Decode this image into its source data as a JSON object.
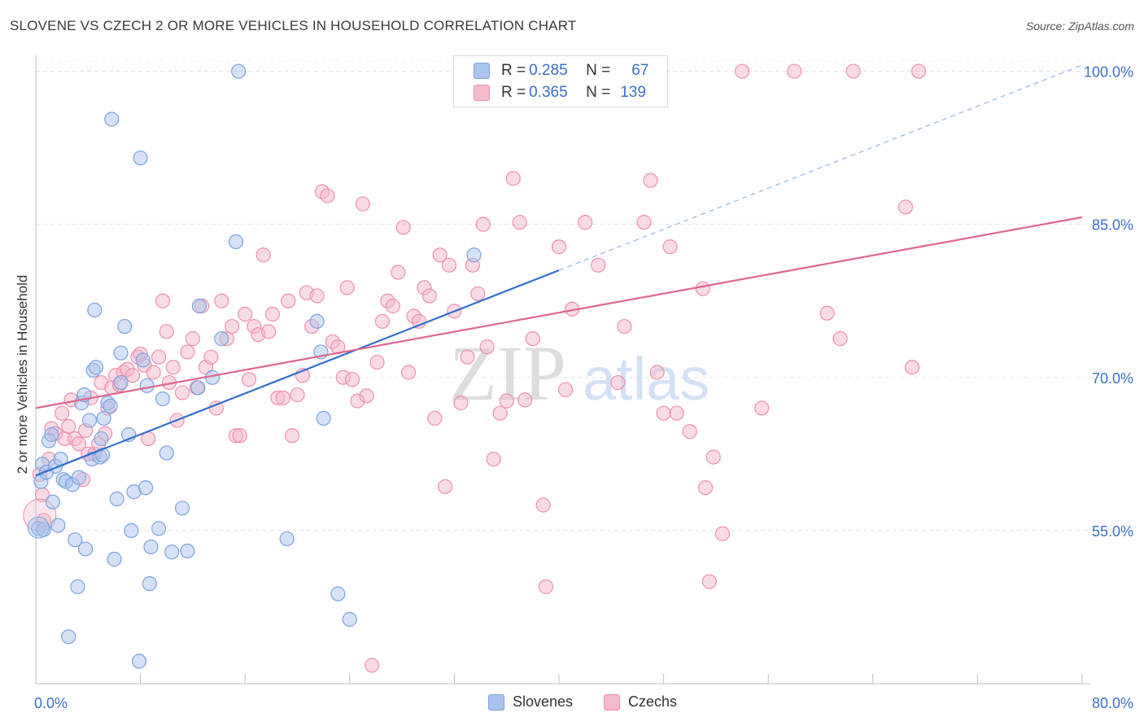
{
  "title": "SLOVENE VS CZECH 2 OR MORE VEHICLES IN HOUSEHOLD CORRELATION CHART",
  "source": "Source: ZipAtlas.com",
  "watermark": {
    "zip": "ZIP",
    "atlas": "atlas"
  },
  "legend_top": [
    {
      "r_label": "R = ",
      "r_value": "0.285",
      "n_label": "N = ",
      "n_value": "67",
      "fill": "#a9c4ee",
      "stroke": "#7da3dd"
    },
    {
      "r_label": "R = ",
      "r_value": "0.365",
      "n_label": "N = ",
      "n_value": "139",
      "fill": "#f6b8cb",
      "stroke": "#ee8fae"
    }
  ],
  "chart_data": {
    "type": "scatter",
    "title": "SLOVENE VS CZECH 2 OR MORE VEHICLES IN HOUSEHOLD CORRELATION CHART",
    "xlabel": "",
    "ylabel": "2 or more Vehicles in Household",
    "xlim": [
      0,
      80
    ],
    "ylim": [
      40,
      101
    ],
    "x_tick_labels": [
      "0.0%",
      "80.0%"
    ],
    "y_ticks": [
      55,
      70,
      85,
      100
    ],
    "y_tick_labels": [
      "55.0%",
      "70.0%",
      "85.0%",
      "100.0%"
    ],
    "grid": true,
    "legend_position": "bottom-center",
    "series": [
      {
        "name": "Slovenes",
        "color": "#7da3dd",
        "fill": "#a9c4ee",
        "trend": {
          "x0": 0,
          "y0": 60.4,
          "x1": 40,
          "y1": 80.5,
          "dash_to_x": 80,
          "dash_to_y": 100.6
        },
        "points": [
          [
            0.2,
            55.2
          ],
          [
            0.4,
            59.8
          ],
          [
            0.5,
            61.5
          ],
          [
            0.6,
            55.1
          ],
          [
            0.8,
            60.7
          ],
          [
            1.0,
            63.8
          ],
          [
            1.2,
            64.4
          ],
          [
            1.3,
            57.8
          ],
          [
            1.5,
            61.3
          ],
          [
            1.7,
            55.5
          ],
          [
            1.9,
            62.0
          ],
          [
            2.1,
            60.0
          ],
          [
            2.3,
            59.8
          ],
          [
            2.5,
            44.6
          ],
          [
            2.8,
            59.5
          ],
          [
            3.0,
            54.1
          ],
          [
            3.2,
            49.5
          ],
          [
            3.3,
            60.2
          ],
          [
            3.5,
            67.5
          ],
          [
            3.7,
            68.3
          ],
          [
            3.8,
            53.2
          ],
          [
            4.1,
            65.8
          ],
          [
            4.3,
            62.0
          ],
          [
            4.4,
            70.7
          ],
          [
            4.5,
            76.6
          ],
          [
            4.6,
            71.0
          ],
          [
            4.9,
            62.2
          ],
          [
            5.1,
            62.4
          ],
          [
            5.2,
            66.0
          ],
          [
            5.5,
            67.5
          ],
          [
            5.7,
            67.2
          ],
          [
            5.8,
            95.3
          ],
          [
            6.0,
            52.2
          ],
          [
            6.2,
            58.1
          ],
          [
            6.5,
            72.4
          ],
          [
            6.8,
            75.0
          ],
          [
            7.1,
            64.4
          ],
          [
            7.3,
            55.0
          ],
          [
            7.5,
            58.8
          ],
          [
            7.9,
            42.2
          ],
          [
            8.0,
            91.5
          ],
          [
            8.2,
            71.7
          ],
          [
            8.4,
            59.2
          ],
          [
            8.5,
            69.2
          ],
          [
            8.7,
            49.8
          ],
          [
            8.8,
            53.4
          ],
          [
            9.4,
            55.2
          ],
          [
            9.7,
            67.9
          ],
          [
            10.0,
            62.6
          ],
          [
            10.4,
            52.9
          ],
          [
            11.2,
            57.2
          ],
          [
            11.6,
            53.0
          ],
          [
            12.4,
            69.0
          ],
          [
            12.5,
            77.0
          ],
          [
            13.5,
            70.0
          ],
          [
            14.2,
            73.8
          ],
          [
            15.3,
            83.3
          ],
          [
            15.5,
            100.0
          ],
          [
            19.2,
            54.2
          ],
          [
            21.5,
            75.5
          ],
          [
            21.8,
            72.5
          ],
          [
            23.1,
            48.8
          ],
          [
            24.0,
            46.3
          ],
          [
            33.5,
            82.0
          ],
          [
            22.0,
            66.0
          ],
          [
            6.5,
            69.5
          ],
          [
            5.0,
            64.0
          ]
        ]
      },
      {
        "name": "Czechs",
        "color": "#ee8fae",
        "fill": "#f6b8cb",
        "trend": {
          "x0": 0,
          "y0": 67.0,
          "x1": 80,
          "y1": 85.7
        },
        "points": [
          [
            0.3,
            60.5
          ],
          [
            0.5,
            58.5
          ],
          [
            0.6,
            56.0
          ],
          [
            1.0,
            62.0
          ],
          [
            1.2,
            65.0
          ],
          [
            1.5,
            64.5
          ],
          [
            2.0,
            66.5
          ],
          [
            2.2,
            64.0
          ],
          [
            2.5,
            65.2
          ],
          [
            2.7,
            67.8
          ],
          [
            3.0,
            64.0
          ],
          [
            3.3,
            63.5
          ],
          [
            3.6,
            60.0
          ],
          [
            3.8,
            64.8
          ],
          [
            4.0,
            62.5
          ],
          [
            4.2,
            68.0
          ],
          [
            4.5,
            62.5
          ],
          [
            4.8,
            63.5
          ],
          [
            5.0,
            69.5
          ],
          [
            5.3,
            64.5
          ],
          [
            5.5,
            67.0
          ],
          [
            5.8,
            69.0
          ],
          [
            6.1,
            70.2
          ],
          [
            6.4,
            69.3
          ],
          [
            6.7,
            70.5
          ],
          [
            7.0,
            70.8
          ],
          [
            7.4,
            70.2
          ],
          [
            7.8,
            72.0
          ],
          [
            8.0,
            72.3
          ],
          [
            8.3,
            71.2
          ],
          [
            8.6,
            64.0
          ],
          [
            9.0,
            70.5
          ],
          [
            9.4,
            72.0
          ],
          [
            9.7,
            77.5
          ],
          [
            10.0,
            74.5
          ],
          [
            10.2,
            69.5
          ],
          [
            10.5,
            71.0
          ],
          [
            10.8,
            65.8
          ],
          [
            11.2,
            68.5
          ],
          [
            11.6,
            72.5
          ],
          [
            12.0,
            73.8
          ],
          [
            12.3,
            69.0
          ],
          [
            12.7,
            77.0
          ],
          [
            13.0,
            71.0
          ],
          [
            13.4,
            72.0
          ],
          [
            13.8,
            67.0
          ],
          [
            14.2,
            77.5
          ],
          [
            14.6,
            73.8
          ],
          [
            15.0,
            75.0
          ],
          [
            15.3,
            64.3
          ],
          [
            15.6,
            64.3
          ],
          [
            16.0,
            76.2
          ],
          [
            16.3,
            69.8
          ],
          [
            16.7,
            75.0
          ],
          [
            17.0,
            74.2
          ],
          [
            17.4,
            82.0
          ],
          [
            17.8,
            74.5
          ],
          [
            18.1,
            76.2
          ],
          [
            18.5,
            68.0
          ],
          [
            18.9,
            68.0
          ],
          [
            19.3,
            77.5
          ],
          [
            19.6,
            64.3
          ],
          [
            20.0,
            68.3
          ],
          [
            20.4,
            70.2
          ],
          [
            20.7,
            78.3
          ],
          [
            21.1,
            75.0
          ],
          [
            21.5,
            78.0
          ],
          [
            21.9,
            88.2
          ],
          [
            22.3,
            87.8
          ],
          [
            22.7,
            73.5
          ],
          [
            23.1,
            73.0
          ],
          [
            23.5,
            70.0
          ],
          [
            23.8,
            78.8
          ],
          [
            24.2,
            69.8
          ],
          [
            24.6,
            67.7
          ],
          [
            25.0,
            87.0
          ],
          [
            25.3,
            68.2
          ],
          [
            25.7,
            41.8
          ],
          [
            26.1,
            71.5
          ],
          [
            26.5,
            75.5
          ],
          [
            26.9,
            77.5
          ],
          [
            27.3,
            77.0
          ],
          [
            27.7,
            80.3
          ],
          [
            28.1,
            84.7
          ],
          [
            28.5,
            70.5
          ],
          [
            28.9,
            76.0
          ],
          [
            29.3,
            75.5
          ],
          [
            29.7,
            78.8
          ],
          [
            30.1,
            78.0
          ],
          [
            30.5,
            66.0
          ],
          [
            30.9,
            82.0
          ],
          [
            31.3,
            59.3
          ],
          [
            31.6,
            81.0
          ],
          [
            32.0,
            76.5
          ],
          [
            32.5,
            67.5
          ],
          [
            33.0,
            72.0
          ],
          [
            33.4,
            81.0
          ],
          [
            33.8,
            78.2
          ],
          [
            34.2,
            85.0
          ],
          [
            34.5,
            73.0
          ],
          [
            35.0,
            62.0
          ],
          [
            35.5,
            66.5
          ],
          [
            36.0,
            67.7
          ],
          [
            36.5,
            89.5
          ],
          [
            37.0,
            85.2
          ],
          [
            37.4,
            67.8
          ],
          [
            38.0,
            73.8
          ],
          [
            38.8,
            57.5
          ],
          [
            39.0,
            49.5
          ],
          [
            40.0,
            82.8
          ],
          [
            40.5,
            68.8
          ],
          [
            41.0,
            76.7
          ],
          [
            42.0,
            85.2
          ],
          [
            43.0,
            81.0
          ],
          [
            44.0,
            100.0
          ],
          [
            44.5,
            69.5
          ],
          [
            45.0,
            75.0
          ],
          [
            46.5,
            85.2
          ],
          [
            47.0,
            89.3
          ],
          [
            47.5,
            70.5
          ],
          [
            48.0,
            66.5
          ],
          [
            48.5,
            82.8
          ],
          [
            49.0,
            66.5
          ],
          [
            50.0,
            64.7
          ],
          [
            51.0,
            78.7
          ],
          [
            51.2,
            59.2
          ],
          [
            51.5,
            50.0
          ],
          [
            51.8,
            62.2
          ],
          [
            52.5,
            54.7
          ],
          [
            54.0,
            100.0
          ],
          [
            55.5,
            67.0
          ],
          [
            58.0,
            100.0
          ],
          [
            60.5,
            76.3
          ],
          [
            61.5,
            73.8
          ],
          [
            62.5,
            100.0
          ],
          [
            66.5,
            86.7
          ],
          [
            67.0,
            71.0
          ],
          [
            67.5,
            100.0
          ]
        ]
      }
    ]
  }
}
